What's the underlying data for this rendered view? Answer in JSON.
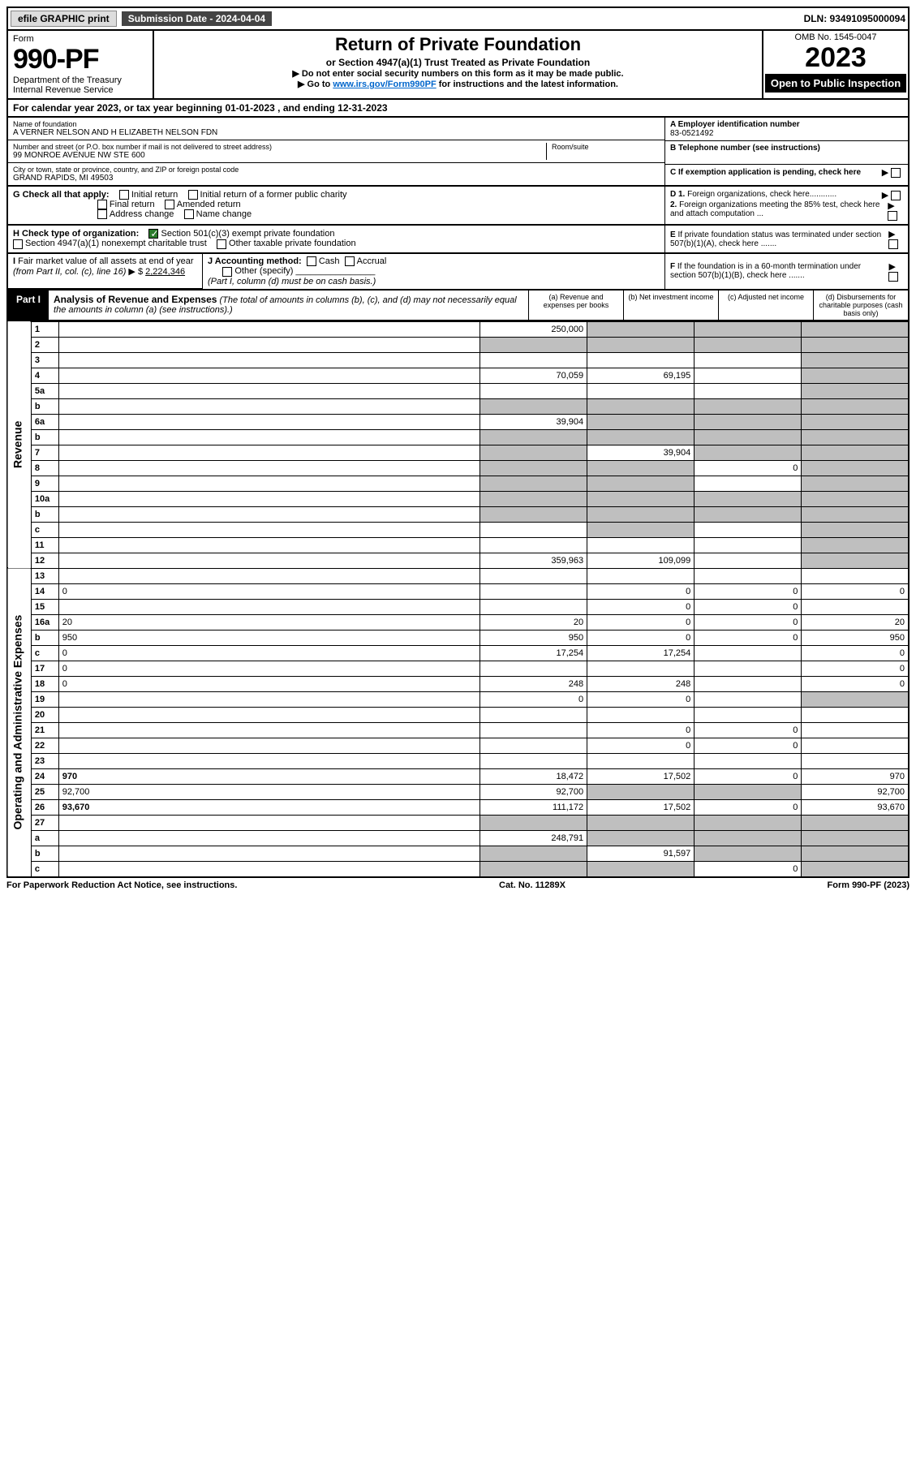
{
  "top": {
    "efile": "efile GRAPHIC print",
    "sub_date_label": "Submission Date - 2024-04-04",
    "dln": "DLN: 93491095000094"
  },
  "header": {
    "form_word": "Form",
    "form_num": "990-PF",
    "dept": "Department of the Treasury",
    "irs": "Internal Revenue Service",
    "title": "Return of Private Foundation",
    "subtitle": "or Section 4947(a)(1) Trust Treated as Private Foundation",
    "note1": "▶ Do not enter social security numbers on this form as it may be made public.",
    "note2_pre": "▶ Go to ",
    "note2_link": "www.irs.gov/Form990PF",
    "note2_post": " for instructions and the latest information.",
    "omb": "OMB No. 1545-0047",
    "year": "2023",
    "open": "Open to Public Inspection"
  },
  "calyear": "For calendar year 2023, or tax year beginning 01-01-2023                 , and ending 12-31-2023",
  "info": {
    "name_label": "Name of foundation",
    "name": "A VERNER NELSON AND H ELIZABETH NELSON FDN",
    "addr_label": "Number and street (or P.O. box number if mail is not delivered to street address)",
    "addr": "99 MONROE AVENUE NW STE 600",
    "room_label": "Room/suite",
    "city_label": "City or town, state or province, country, and ZIP or foreign postal code",
    "city": "GRAND RAPIDS, MI  49503",
    "a_label": "A Employer identification number",
    "a_val": "83-0521492",
    "b_label": "B Telephone number (see instructions)",
    "c_label": "C If exemption application is pending, check here"
  },
  "checks": {
    "g_label": "G Check all that apply:",
    "g_opts": [
      "Initial return",
      "Initial return of a former public charity",
      "Final return",
      "Amended return",
      "Address change",
      "Name change"
    ],
    "h_label": "H Check type of organization:",
    "h_opt1": "Section 501(c)(3) exempt private foundation",
    "h_opt2": "Section 4947(a)(1) nonexempt charitable trust",
    "h_opt3": "Other taxable private foundation",
    "i_label": "I Fair market value of all assets at end of year (from Part II, col. (c), line 16) ▶ $",
    "i_val": "2,224,346",
    "j_label": "J Accounting method:",
    "j_opts": [
      "Cash",
      "Accrual"
    ],
    "j_other": "Other (specify)",
    "j_note": "(Part I, column (d) must be on cash basis.)",
    "d1": "D 1. Foreign organizations, check here............",
    "d2": "2. Foreign organizations meeting the 85% test, check here and attach computation ...",
    "e": "E If private foundation status was terminated under section 507(b)(1)(A), check here .......",
    "f": "F If the foundation is in a 60-month termination under section 507(b)(1)(B), check here .......",
    "arrow": "▶"
  },
  "part1": {
    "label": "Part I",
    "title": "Analysis of Revenue and Expenses",
    "note": "(The total of amounts in columns (b), (c), and (d) may not necessarily equal the amounts in column (a) (see instructions).)",
    "col_a": "(a) Revenue and expenses per books",
    "col_b": "(b) Net investment income",
    "col_c": "(c) Adjusted net income",
    "col_d": "(d) Disbursements for charitable purposes (cash basis only)"
  },
  "sides": {
    "rev": "Revenue",
    "exp": "Operating and Administrative Expenses"
  },
  "rows": [
    {
      "n": "1",
      "d": "",
      "a": "250,000",
      "b": "",
      "c": "",
      "ga": false,
      "gb": true,
      "gc": true,
      "gd": true
    },
    {
      "n": "2",
      "d": "",
      "a": "",
      "b": "",
      "c": "",
      "ga": true,
      "gb": true,
      "gc": true,
      "gd": true,
      "bold_not": true
    },
    {
      "n": "3",
      "d": "",
      "a": "",
      "b": "",
      "c": "",
      "ga": false,
      "gb": false,
      "gc": false,
      "gd": true
    },
    {
      "n": "4",
      "d": "",
      "a": "70,059",
      "b": "69,195",
      "c": "",
      "ga": false,
      "gb": false,
      "gc": false,
      "gd": true
    },
    {
      "n": "5a",
      "d": "",
      "a": "",
      "b": "",
      "c": "",
      "ga": false,
      "gb": false,
      "gc": false,
      "gd": true
    },
    {
      "n": "b",
      "d": "",
      "a": "",
      "b": "",
      "c": "",
      "ga": true,
      "gb": true,
      "gc": true,
      "gd": true
    },
    {
      "n": "6a",
      "d": "",
      "a": "39,904",
      "b": "",
      "c": "",
      "ga": false,
      "gb": true,
      "gc": true,
      "gd": true
    },
    {
      "n": "b",
      "d": "",
      "a": "",
      "b": "",
      "c": "",
      "ga": true,
      "gb": true,
      "gc": true,
      "gd": true
    },
    {
      "n": "7",
      "d": "",
      "a": "",
      "b": "39,904",
      "c": "",
      "ga": true,
      "gb": false,
      "gc": true,
      "gd": true
    },
    {
      "n": "8",
      "d": "",
      "a": "",
      "b": "",
      "c": "0",
      "ga": true,
      "gb": true,
      "gc": false,
      "gd": true
    },
    {
      "n": "9",
      "d": "",
      "a": "",
      "b": "",
      "c": "",
      "ga": true,
      "gb": true,
      "gc": false,
      "gd": true
    },
    {
      "n": "10a",
      "d": "",
      "a": "",
      "b": "",
      "c": "",
      "ga": true,
      "gb": true,
      "gc": true,
      "gd": true
    },
    {
      "n": "b",
      "d": "",
      "a": "",
      "b": "",
      "c": "",
      "ga": true,
      "gb": true,
      "gc": true,
      "gd": true
    },
    {
      "n": "c",
      "d": "",
      "a": "",
      "b": "",
      "c": "",
      "ga": false,
      "gb": true,
      "gc": false,
      "gd": true
    },
    {
      "n": "11",
      "d": "",
      "a": "",
      "b": "",
      "c": "",
      "ga": false,
      "gb": false,
      "gc": false,
      "gd": true
    },
    {
      "n": "12",
      "d": "",
      "a": "359,963",
      "b": "109,099",
      "c": "",
      "ga": false,
      "gb": false,
      "gc": false,
      "gd": true,
      "bold": true
    },
    {
      "n": "13",
      "d": "",
      "a": "",
      "b": "",
      "c": "",
      "ga": false,
      "gb": false,
      "gc": false,
      "gd": false
    },
    {
      "n": "14",
      "d": "0",
      "a": "",
      "b": "0",
      "c": "0",
      "ga": false,
      "gb": false,
      "gc": false,
      "gd": false
    },
    {
      "n": "15",
      "d": "",
      "a": "",
      "b": "0",
      "c": "0",
      "ga": false,
      "gb": false,
      "gc": false,
      "gd": false
    },
    {
      "n": "16a",
      "d": "20",
      "a": "20",
      "b": "0",
      "c": "0",
      "ga": false,
      "gb": false,
      "gc": false,
      "gd": false
    },
    {
      "n": "b",
      "d": "950",
      "a": "950",
      "b": "0",
      "c": "0",
      "ga": false,
      "gb": false,
      "gc": false,
      "gd": false
    },
    {
      "n": "c",
      "d": "0",
      "a": "17,254",
      "b": "17,254",
      "c": "",
      "ga": false,
      "gb": false,
      "gc": false,
      "gd": false
    },
    {
      "n": "17",
      "d": "0",
      "a": "",
      "b": "",
      "c": "",
      "ga": false,
      "gb": false,
      "gc": false,
      "gd": false
    },
    {
      "n": "18",
      "d": "0",
      "a": "248",
      "b": "248",
      "c": "",
      "ga": false,
      "gb": false,
      "gc": false,
      "gd": false
    },
    {
      "n": "19",
      "d": "",
      "a": "0",
      "b": "0",
      "c": "",
      "ga": false,
      "gb": false,
      "gc": false,
      "gd": true
    },
    {
      "n": "20",
      "d": "",
      "a": "",
      "b": "",
      "c": "",
      "ga": false,
      "gb": false,
      "gc": false,
      "gd": false
    },
    {
      "n": "21",
      "d": "",
      "a": "",
      "b": "0",
      "c": "0",
      "ga": false,
      "gb": false,
      "gc": false,
      "gd": false
    },
    {
      "n": "22",
      "d": "",
      "a": "",
      "b": "0",
      "c": "0",
      "ga": false,
      "gb": false,
      "gc": false,
      "gd": false
    },
    {
      "n": "23",
      "d": "",
      "a": "",
      "b": "",
      "c": "",
      "ga": false,
      "gb": false,
      "gc": false,
      "gd": false
    },
    {
      "n": "24",
      "d": "970",
      "a": "18,472",
      "b": "17,502",
      "c": "0",
      "ga": false,
      "gb": false,
      "gc": false,
      "gd": false,
      "bold": true
    },
    {
      "n": "25",
      "d": "92,700",
      "a": "92,700",
      "b": "",
      "c": "",
      "ga": false,
      "gb": true,
      "gc": true,
      "gd": false
    },
    {
      "n": "26",
      "d": "93,670",
      "a": "111,172",
      "b": "17,502",
      "c": "0",
      "ga": false,
      "gb": false,
      "gc": false,
      "gd": false,
      "bold": true
    },
    {
      "n": "27",
      "d": "",
      "a": "",
      "b": "",
      "c": "",
      "ga": true,
      "gb": true,
      "gc": true,
      "gd": true
    },
    {
      "n": "a",
      "d": "",
      "a": "248,791",
      "b": "",
      "c": "",
      "ga": false,
      "gb": true,
      "gc": true,
      "gd": true,
      "bold": true
    },
    {
      "n": "b",
      "d": "",
      "a": "",
      "b": "91,597",
      "c": "",
      "ga": true,
      "gb": false,
      "gc": true,
      "gd": true,
      "bold": true
    },
    {
      "n": "c",
      "d": "",
      "a": "",
      "b": "",
      "c": "0",
      "ga": true,
      "gb": true,
      "gc": false,
      "gd": true,
      "bold": true
    }
  ],
  "footer": {
    "left": "For Paperwork Reduction Act Notice, see instructions.",
    "mid": "Cat. No. 11289X",
    "right": "Form 990-PF (2023)"
  },
  "colors": {
    "grey": "#bfbfbf",
    "black": "#000000",
    "link": "#0066cc",
    "check_green": "#2a7a2a"
  }
}
